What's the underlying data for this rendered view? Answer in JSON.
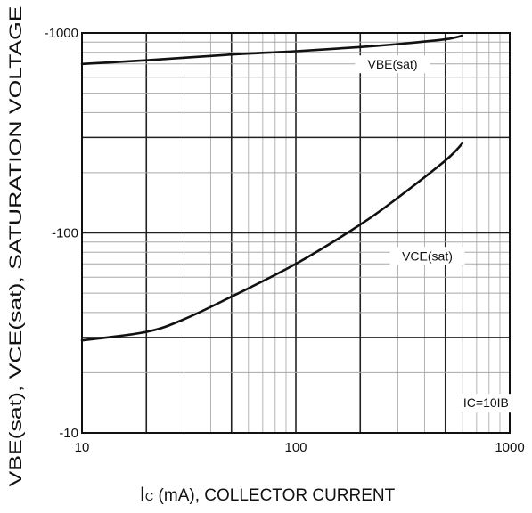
{
  "chart_data": {
    "type": "line",
    "xscale": "log",
    "yscale": "log",
    "xlim": [
      10,
      1000
    ],
    "ylim": [
      -10,
      -1000
    ],
    "x_ticks": [
      "10",
      "100",
      "1000"
    ],
    "y_ticks": [
      "-1000",
      "-100",
      "-10"
    ],
    "xlabel_main": "I",
    "xlabel_sub": "C",
    "xlabel_rest": " (mA), COLLECTOR CURRENT",
    "ylabel": "VBE(sat), VCE(sat), SATURATION VOLTAGE",
    "grid": true,
    "annotation": "IC=10IB",
    "series": [
      {
        "name": "VBE(sat)",
        "x": [
          10,
          20,
          50,
          100,
          200,
          300,
          500,
          600
        ],
        "y": [
          -700,
          -730,
          -780,
          -810,
          -850,
          -880,
          -930,
          -970
        ]
      },
      {
        "name": "VCE(sat)",
        "x": [
          10,
          20,
          30,
          50,
          100,
          200,
          300,
          500,
          600
        ],
        "y": [
          -29,
          -32,
          -37,
          -48,
          -70,
          -110,
          -150,
          -230,
          -280
        ]
      }
    ]
  }
}
